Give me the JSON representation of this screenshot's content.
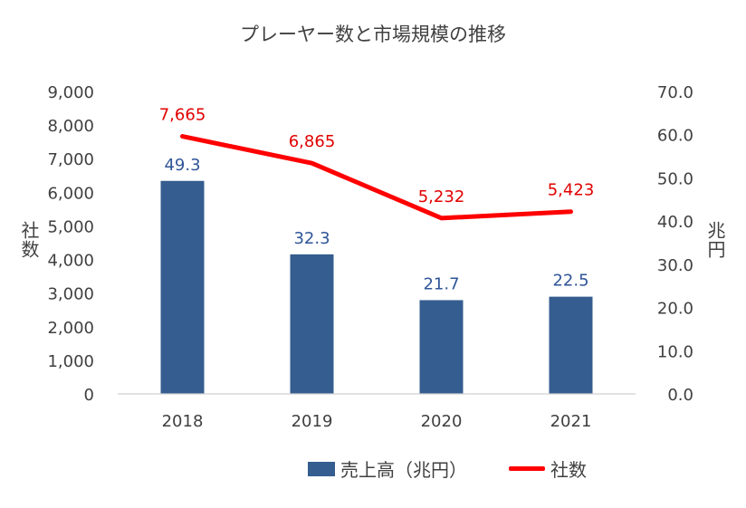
{
  "chart_data": {
    "type": "bar",
    "title": "プレーヤー数と市場規模の推移",
    "categories": [
      "2018",
      "2019",
      "2020",
      "2021"
    ],
    "y_left": {
      "label": "社数",
      "ylim": [
        0,
        9000
      ],
      "ticks": [
        "0",
        "1,000",
        "2,000",
        "3,000",
        "4,000",
        "5,000",
        "6,000",
        "7,000",
        "8,000",
        "9,000"
      ]
    },
    "y_right": {
      "label": "兆円",
      "ylim": [
        0,
        70
      ],
      "ticks": [
        "0.0",
        "10.0",
        "20.0",
        "30.0",
        "40.0",
        "50.0",
        "60.0",
        "70.0"
      ]
    },
    "series": [
      {
        "name": "売上高（兆円）",
        "type": "bar",
        "axis": "right",
        "values": [
          49.3,
          32.3,
          21.7,
          22.5
        ],
        "labels": [
          "49.3",
          "32.3",
          "21.7",
          "22.5"
        ],
        "color": "#355D8F",
        "label_color": "#2F5597"
      },
      {
        "name": "社数",
        "type": "line",
        "axis": "left",
        "values": [
          7665,
          6865,
          5232,
          5423
        ],
        "labels": [
          "7,665",
          "6,865",
          "5,232",
          "5,423"
        ],
        "color": "#FF0000",
        "label_color": "#E00000"
      }
    ],
    "grid": false,
    "legend_position": "bottom"
  }
}
